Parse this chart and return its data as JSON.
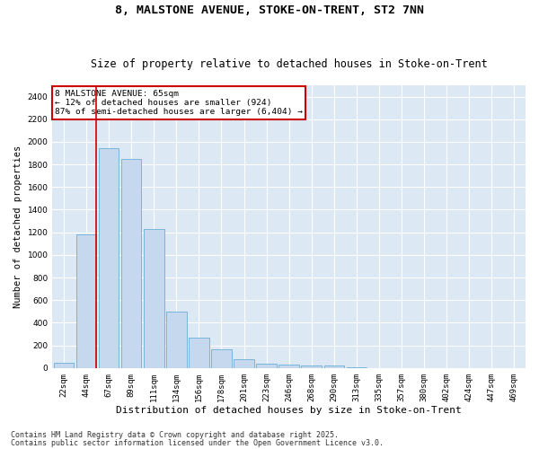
{
  "title1": "8, MALSTONE AVENUE, STOKE-ON-TRENT, ST2 7NN",
  "title2": "Size of property relative to detached houses in Stoke-on-Trent",
  "xlabel": "Distribution of detached houses by size in Stoke-on-Trent",
  "ylabel": "Number of detached properties",
  "categories": [
    "22sqm",
    "44sqm",
    "67sqm",
    "89sqm",
    "111sqm",
    "134sqm",
    "156sqm",
    "178sqm",
    "201sqm",
    "223sqm",
    "246sqm",
    "268sqm",
    "290sqm",
    "313sqm",
    "335sqm",
    "357sqm",
    "380sqm",
    "402sqm",
    "424sqm",
    "447sqm",
    "469sqm"
  ],
  "values": [
    50,
    1180,
    1940,
    1850,
    1230,
    500,
    270,
    165,
    75,
    40,
    30,
    25,
    20,
    5,
    2,
    1,
    1,
    0,
    0,
    0,
    0
  ],
  "bar_color": "#c5d8ed",
  "bar_edgecolor": "#6aaed6",
  "vline_color": "#cc0000",
  "ylim": [
    0,
    2500
  ],
  "yticks": [
    0,
    200,
    400,
    600,
    800,
    1000,
    1200,
    1400,
    1600,
    1800,
    2000,
    2200,
    2400
  ],
  "annotation_title": "8 MALSTONE AVENUE: 65sqm",
  "annotation_line1": "← 12% of detached houses are smaller (924)",
  "annotation_line2": "87% of semi-detached houses are larger (6,404) →",
  "annotation_box_color": "#cc0000",
  "footer1": "Contains HM Land Registry data © Crown copyright and database right 2025.",
  "footer2": "Contains public sector information licensed under the Open Government Licence v3.0.",
  "bg_color": "#dce9f5",
  "grid_color": "#ffffff",
  "fig_bg": "#ffffff",
  "title_fontsize": 9.5,
  "subtitle_fontsize": 8.5,
  "ylabel_fontsize": 7.5,
  "xlabel_fontsize": 8,
  "tick_fontsize": 6.5,
  "ann_fontsize": 6.8,
  "footer_fontsize": 6
}
